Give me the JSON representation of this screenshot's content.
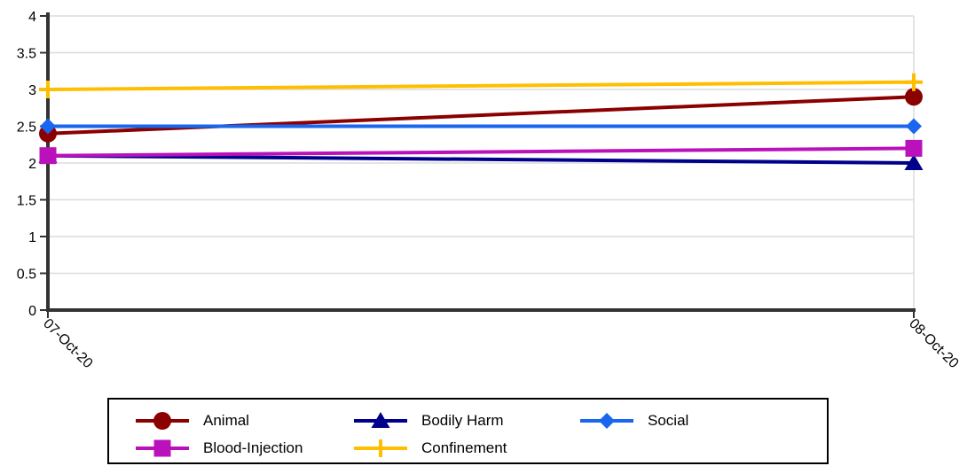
{
  "chart_data": {
    "type": "line",
    "title": "",
    "xlabel": "",
    "ylabel": "",
    "categories": [
      "07-Oct-20",
      "08-Oct-20"
    ],
    "ylim": [
      0,
      4
    ],
    "yticks": [
      "0",
      "0.5",
      "1",
      "1.5",
      "2",
      "2.5",
      "3",
      "3.5",
      "4"
    ],
    "grid": true,
    "legend_position": "bottom",
    "series": [
      {
        "name": "Animal",
        "values": [
          2.4,
          2.9
        ],
        "color": "#8b0000",
        "marker": "circle"
      },
      {
        "name": "Bodily Harm",
        "values": [
          2.1,
          2.0
        ],
        "color": "#00008b",
        "marker": "triangle"
      },
      {
        "name": "Social",
        "values": [
          2.5,
          2.5
        ],
        "color": "#1a66ee",
        "marker": "diamond"
      },
      {
        "name": "Blood-Injection",
        "values": [
          2.1,
          2.2
        ],
        "color": "#bb11bb",
        "marker": "square"
      },
      {
        "name": "Confinement",
        "values": [
          3.0,
          3.1
        ],
        "color": "#ffbf00",
        "marker": "plus"
      }
    ]
  }
}
